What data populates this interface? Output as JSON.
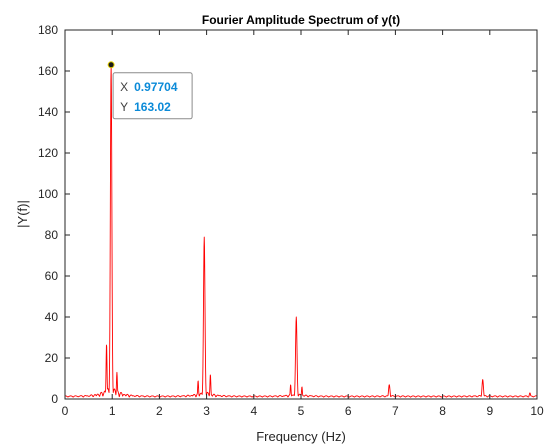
{
  "chart_data": {
    "type": "line",
    "title": "Fourier Amplitude Spectrum of y(t)",
    "xlabel": "Frequency (Hz)",
    "ylabel": "|Y(f)|",
    "xlim": [
      0,
      10
    ],
    "ylim": [
      0,
      180
    ],
    "xticks": [
      0,
      1,
      2,
      3,
      4,
      5,
      6,
      7,
      8,
      9,
      10
    ],
    "yticks": [
      0,
      20,
      40,
      60,
      80,
      100,
      120,
      140,
      160,
      180
    ],
    "grid": false,
    "line_color": "#ff0000",
    "baseline_level": 1.5,
    "series": [
      {
        "peaks": [
          {
            "x": 0.97704,
            "y": 163.02
          },
          {
            "x": 2.95,
            "y": 79
          },
          {
            "x": 4.9,
            "y": 40
          },
          {
            "x": 6.87,
            "y": 7
          },
          {
            "x": 8.85,
            "y": 9.5
          },
          {
            "x": 9.85,
            "y": 3
          }
        ],
        "side_lobes": [
          {
            "x": 0.88,
            "y": 27
          },
          {
            "x": 1.1,
            "y": 13
          },
          {
            "x": 2.82,
            "y": 9
          },
          {
            "x": 3.08,
            "y": 12
          },
          {
            "x": 4.78,
            "y": 7
          },
          {
            "x": 5.02,
            "y": 6
          }
        ]
      }
    ],
    "datatip": {
      "x_label": "X",
      "x_value": "0.97704",
      "y_label": "Y",
      "y_value": "163.02",
      "marker_x": 0.97704,
      "marker_y": 163.02,
      "value_color": "#0a8ad8"
    }
  }
}
